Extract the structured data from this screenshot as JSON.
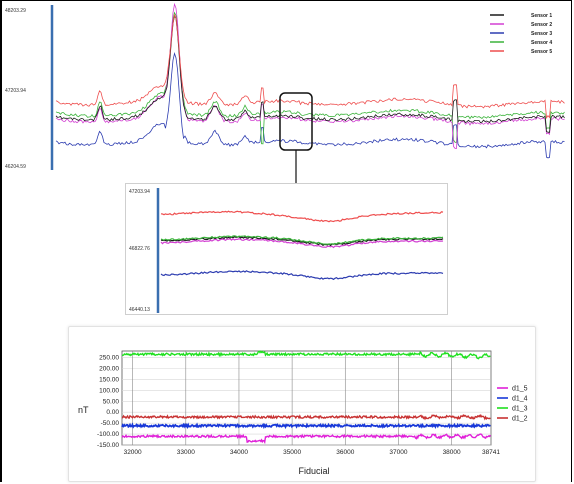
{
  "chart_data": [
    {
      "type": "line",
      "title": "",
      "xlabel": "",
      "ylabel": "",
      "yticks": [
        "48203.29",
        "47203.94",
        "46204.59"
      ],
      "ylim": [
        46204.59,
        48203.29
      ],
      "grid": false,
      "legend_position": "top-right",
      "series": [
        {
          "name": "Sensor 1",
          "color": "#1a1a1a"
        },
        {
          "name": "Sensor 2",
          "color": "#d23fd2"
        },
        {
          "name": "Sensor 3",
          "color": "#2c3cb0"
        },
        {
          "name": "Sensor 4",
          "color": "#3ab33a"
        },
        {
          "name": "Sensor 5",
          "color": "#ee4e4e"
        }
      ]
    },
    {
      "type": "line",
      "title": "",
      "xlabel": "",
      "ylabel": "",
      "yticks": [
        "47203.94",
        "46822.76",
        "46440.13"
      ],
      "ylim": [
        46440.13,
        47203.94
      ],
      "grid": false,
      "series": [
        {
          "color": "#1a1a1a"
        },
        {
          "color": "#d23fd2"
        },
        {
          "color": "#2c3cb0"
        },
        {
          "color": "#3ab33a"
        },
        {
          "color": "#ee4e4e"
        }
      ]
    },
    {
      "type": "line",
      "title": "",
      "xlabel": "Fiducial",
      "ylabel": "nT",
      "x_ticks": [
        "32000",
        "33000",
        "34000",
        "35000",
        "36000",
        "37000",
        "38000",
        "38741"
      ],
      "xlim": [
        31800,
        38741
      ],
      "y_ticks": [
        "250.00",
        "200.00",
        "150.00",
        "100.00",
        "50.00",
        "0.00",
        "-50.00",
        "-100.00",
        "-150.00"
      ],
      "ylim": [
        -150,
        280
      ],
      "grid": true,
      "legend_position": "right",
      "series": [
        {
          "name": "d1_5",
          "color": "#e020d8",
          "values_approx": -110
        },
        {
          "name": "d1_4",
          "color": "#1838d8",
          "values_approx": -62
        },
        {
          "name": "d1_3",
          "color": "#20e020",
          "values_approx": 265
        },
        {
          "name": "d1_2",
          "color": "#c83232",
          "values_approx": -22
        }
      ]
    }
  ]
}
